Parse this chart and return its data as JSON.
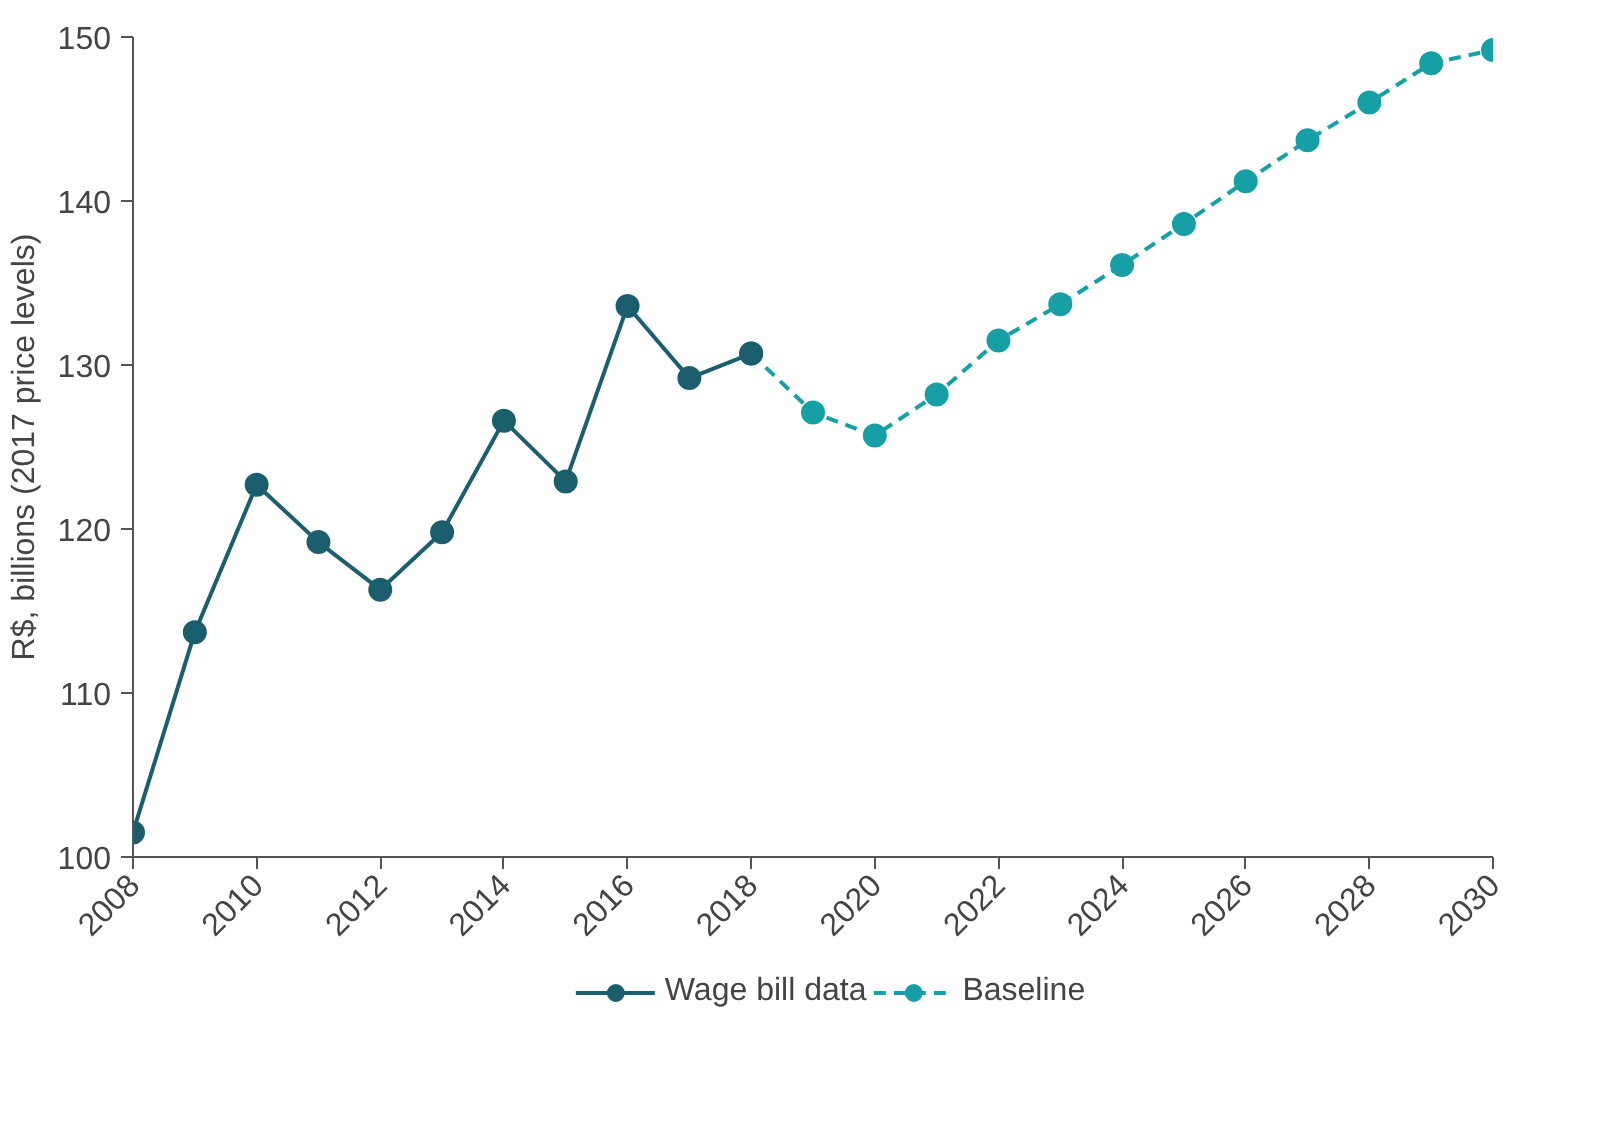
{
  "chart_data": {
    "type": "line",
    "ylabel": "R$, billions (2017 price levels)",
    "xlim": [
      2008,
      2030
    ],
    "xticks": [
      2008,
      2010,
      2012,
      2014,
      2016,
      2018,
      2020,
      2022,
      2024,
      2026,
      2028,
      2030
    ],
    "ylim": [
      100,
      150
    ],
    "yticks": [
      100,
      110,
      120,
      130,
      140,
      150
    ],
    "grid": false,
    "legend": "bottom",
    "marker": "circle",
    "series": [
      {
        "name": "Wage bill data",
        "color": "#1b5e6e",
        "line_style": "solid",
        "x": [
          2008,
          2009,
          2010,
          2011,
          2012,
          2013,
          2014,
          2015,
          2016,
          2017,
          2018
        ],
        "values": [
          101.5,
          113.7,
          122.7,
          119.2,
          116.3,
          119.8,
          126.6,
          122.9,
          133.6,
          129.2,
          130.7
        ]
      },
      {
        "name": "Baseline",
        "color": "#16a0a6",
        "line_style": "dashed",
        "x": [
          2018,
          2019,
          2020,
          2021,
          2022,
          2023,
          2024,
          2025,
          2026,
          2027,
          2028,
          2029,
          2030
        ],
        "values": [
          130.7,
          127.1,
          125.7,
          128.2,
          131.5,
          133.7,
          136.1,
          138.6,
          141.2,
          143.7,
          146.0,
          148.4,
          149.2
        ]
      }
    ]
  }
}
